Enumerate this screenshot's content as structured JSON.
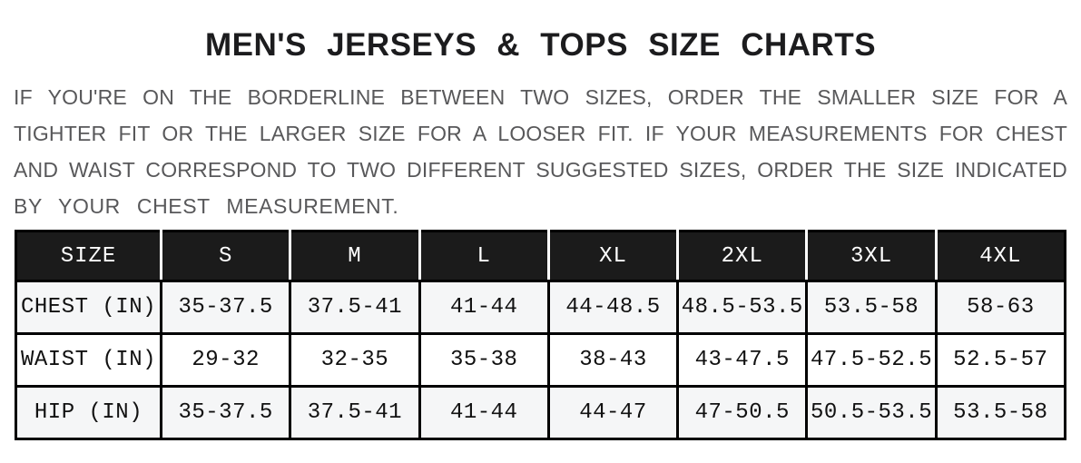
{
  "title": "MEN'S JERSEYS & TOPS SIZE CHARTS",
  "intro": {
    "lines": [
      "IF YOU'RE ON THE BORDERLINE BETWEEN TWO SIZES, ORDER THE SMALLER SIZE FOR A",
      "TIGHTER FIT OR THE LARGER SIZE FOR A LOOSER FIT. IF YOUR MEASUREMENTS FOR CHEST",
      "AND WAIST CORRESPOND TO TWO DIFFERENT SUGGESTED SIZES, ORDER THE SIZE INDICATED",
      "BY YOUR CHEST MEASUREMENT."
    ]
  },
  "table": {
    "header": [
      "SIZE",
      "S",
      "M",
      "L",
      "XL",
      "2XL",
      "3XL",
      "4XL"
    ],
    "rows": [
      {
        "label": "CHEST (IN)",
        "values": [
          "35-37.5",
          "37.5-41",
          "41-44",
          "44-48.5",
          "48.5-53.5",
          "53.5-58",
          "58-63"
        ]
      },
      {
        "label": "WAIST (IN)",
        "values": [
          "29-32",
          "32-35",
          "35-38",
          "38-43",
          "43-47.5",
          "47.5-52.5",
          "52.5-57"
        ]
      },
      {
        "label": "HIP (IN)",
        "values": [
          "35-37.5",
          "37.5-41",
          "41-44",
          "44-47",
          "47-50.5",
          "50.5-53.5",
          "53.5-58"
        ]
      }
    ]
  },
  "colors": {
    "header_bg": "#1b1b1b",
    "header_text": "#ffffff",
    "alt_row_bg": "#f5f6f7",
    "border": "#000000",
    "intro_text": "#58585a",
    "title_text": "#1c1c1e"
  }
}
